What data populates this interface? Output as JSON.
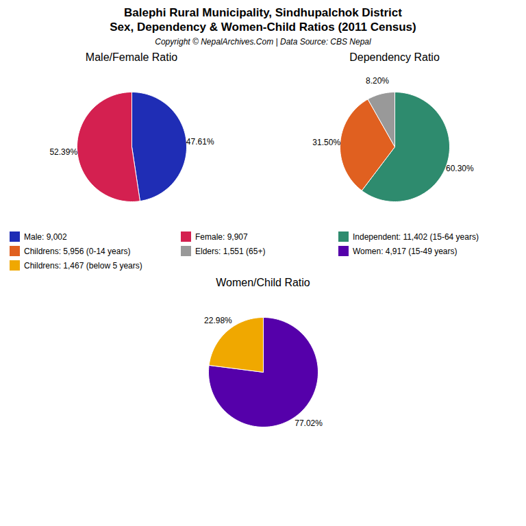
{
  "title": "Balephi Rural Municipality, Sindhupalchok District",
  "subtitle": "Sex, Dependency & Women-Child Ratios (2011 Census)",
  "annotations": [
    "Copyright © NepalArchives.Com | Data Source: CBS Nepal"
  ],
  "chart_data": [
    {
      "type": "pie",
      "title": "Male/Female Ratio",
      "categories": [
        "Male: 9,002",
        "Female: 9,907"
      ],
      "values": [
        47.61,
        52.39
      ],
      "value_labels": [
        "47.61%",
        "52.39%"
      ],
      "colors": [
        "#1f2db5",
        "#d42050"
      ],
      "data_labels": true,
      "legend": "center"
    },
    {
      "type": "pie",
      "title": "Dependency Ratio",
      "categories": [
        "Independent: 11,402 (15-64 years)",
        "Childrens: 5,956 (0-14 years)",
        "Elders: 1,551 (65+)"
      ],
      "values": [
        60.3,
        31.5,
        8.2
      ],
      "value_labels": [
        "60.30%",
        "31.50%",
        "8.20%"
      ],
      "colors": [
        "#2e8b6e",
        "#e06020",
        "#999999"
      ],
      "data_labels": true,
      "legend": "center"
    },
    {
      "type": "pie",
      "title": "Women/Child Ratio",
      "categories": [
        "Women: 4,917 (15-49 years)",
        "Childrens: 1,467 (below 5 years)"
      ],
      "values": [
        77.02,
        22.98
      ],
      "value_labels": [
        "77.02%",
        "22.98%"
      ],
      "colors": [
        "#5500aa",
        "#f0a800"
      ],
      "data_labels": true,
      "legend": "center"
    }
  ]
}
